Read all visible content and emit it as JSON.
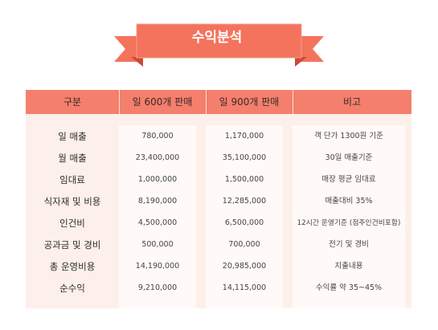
{
  "title": "수익분석",
  "colors": {
    "ribbon": "#f4735d",
    "ribbon_dark": "#d2523f",
    "header": "#f47f6c",
    "panel": "#fdf0ea",
    "column": "#fffaf7"
  },
  "table": {
    "headers": [
      "구분",
      "일 600개 판매",
      "일 900개 판매",
      "비고"
    ],
    "rows": [
      {
        "label": "일 매출",
        "v600": "780,000",
        "v900": "1,170,000",
        "note": "객 단가 1300원 기준"
      },
      {
        "label": "월 매출",
        "v600": "23,400,000",
        "v900": "35,100,000",
        "note": "30일 매출기준"
      },
      {
        "label": "임대료",
        "v600": "1,000,000",
        "v900": "1,500,000",
        "note": "매장 평균 임대료"
      },
      {
        "label": "식자재 및 비용",
        "v600": "8,190,000",
        "v900": "12,285,000",
        "note": "매출대비 35%"
      },
      {
        "label": "인건비",
        "v600": "4,500,000",
        "v900": "6,500,000",
        "note": "12시간 운영기준 (점주인건비포함)"
      },
      {
        "label": "공과금 및 경비",
        "v600": "500,000",
        "v900": "700,000",
        "note": "전기 및 경비"
      },
      {
        "label": "총 운영비용",
        "v600": "14,190,000",
        "v900": "20,985,000",
        "note": "지출내용"
      },
      {
        "label": "순수익",
        "v600": "9,210,000",
        "v900": "14,115,000",
        "note": "수익률 약 35~45%"
      }
    ]
  }
}
